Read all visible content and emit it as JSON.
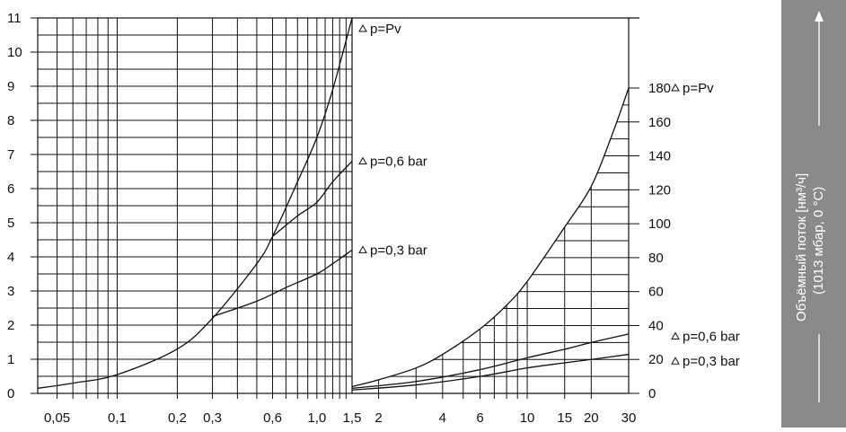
{
  "chart_data": {
    "type": "line",
    "side_label": {
      "line1": "Объёмный поток [нм³/ч]",
      "line2": "(1013 мбар, 0 °C)"
    },
    "left_panel": {
      "x_scale": "log",
      "xlim": [
        0.04,
        1.5
      ],
      "ylim": [
        0,
        11
      ],
      "x_tick_labels": [
        {
          "v": 0.05,
          "label": "0,05"
        },
        {
          "v": 0.1,
          "label": "0,1"
        },
        {
          "v": 0.2,
          "label": "0,2"
        },
        {
          "v": 0.3,
          "label": "0,3"
        },
        {
          "v": 0.6,
          "label": "0,6"
        },
        {
          "v": 1.0,
          "label": "1,0"
        },
        {
          "v": 1.5,
          "label": "1,5"
        }
      ],
      "y_ticks": [
        0,
        1,
        2,
        3,
        4,
        5,
        6,
        7,
        8,
        9,
        10,
        11
      ],
      "series": [
        {
          "name": "p=Pv",
          "points": [
            [
              0.04,
              0.15
            ],
            [
              0.06,
              0.3
            ],
            [
              0.1,
              0.55
            ],
            [
              0.2,
              1.3
            ],
            [
              0.3,
              2.2
            ],
            [
              0.5,
              3.8
            ],
            [
              0.6,
              4.6
            ],
            [
              0.8,
              6.2
            ],
            [
              1.0,
              7.5
            ],
            [
              1.2,
              8.9
            ],
            [
              1.5,
              11.0
            ]
          ]
        },
        {
          "name": "p=0,6 bar",
          "points": [
            [
              0.6,
              4.6
            ],
            [
              0.8,
              5.2
            ],
            [
              1.0,
              5.6
            ],
            [
              1.2,
              6.2
            ],
            [
              1.5,
              6.8
            ]
          ]
        },
        {
          "name": "p=0,3 bar",
          "points": [
            [
              0.3,
              2.25
            ],
            [
              0.5,
              2.7
            ],
            [
              0.7,
              3.1
            ],
            [
              1.0,
              3.5
            ],
            [
              1.2,
              3.8
            ],
            [
              1.5,
              4.2
            ]
          ]
        }
      ]
    },
    "right_panel": {
      "x_scale": "log",
      "xlim": [
        1.5,
        30
      ],
      "ylim": [
        0,
        200
      ],
      "x_tick_labels": [
        {
          "v": 2,
          "label": "2"
        },
        {
          "v": 4,
          "label": "4"
        },
        {
          "v": 6,
          "label": "6"
        },
        {
          "v": 10,
          "label": "10"
        },
        {
          "v": 15,
          "label": "15"
        },
        {
          "v": 20,
          "label": "20"
        },
        {
          "v": 30,
          "label": "30"
        }
      ],
      "y_ticks": [
        0,
        20,
        40,
        60,
        80,
        100,
        120,
        140,
        160,
        180
      ],
      "series": [
        {
          "name": "p=Pv",
          "points": [
            [
              1.5,
              4
            ],
            [
              2,
              8
            ],
            [
              3,
              15
            ],
            [
              4,
              23
            ],
            [
              6,
              38
            ],
            [
              8,
              52
            ],
            [
              10,
              66
            ],
            [
              15,
              98
            ],
            [
              20,
              122
            ],
            [
              25,
              152
            ],
            [
              30,
              180
            ]
          ]
        },
        {
          "name": "p=0,6 bar",
          "points": [
            [
              1.5,
              3
            ],
            [
              3,
              7
            ],
            [
              6,
              14
            ],
            [
              10,
              21
            ],
            [
              15,
              26
            ],
            [
              20,
              30
            ],
            [
              30,
              35
            ]
          ]
        },
        {
          "name": "p=0,3 bar",
          "points": [
            [
              1.5,
              2
            ],
            [
              3,
              5
            ],
            [
              6,
              10
            ],
            [
              10,
              15
            ],
            [
              15,
              18
            ],
            [
              20,
              20
            ],
            [
              30,
              23
            ]
          ]
        }
      ]
    }
  }
}
